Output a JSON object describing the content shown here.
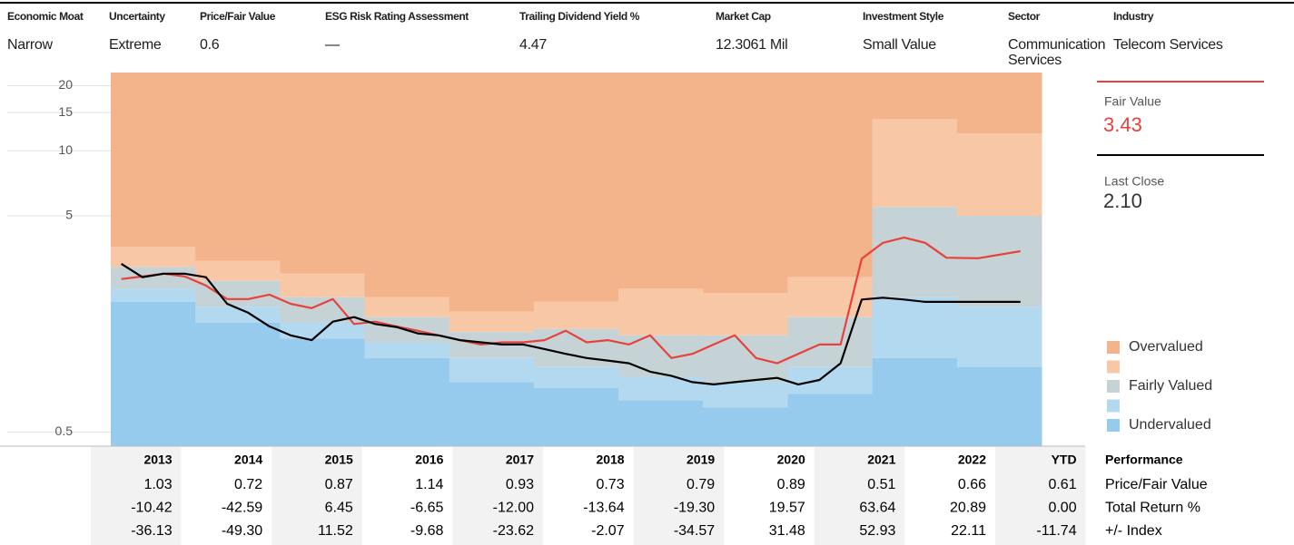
{
  "header": {
    "fields": [
      {
        "label": "Economic Moat",
        "value": "Narrow"
      },
      {
        "label": "Uncertainty",
        "value": "Extreme"
      },
      {
        "label": "Price/Fair Value",
        "value": "0.6"
      },
      {
        "label": "ESG Risk Rating Assessment",
        "value": "—"
      },
      {
        "label": "Trailing Dividend Yield %",
        "value": "4.47"
      },
      {
        "label": "Market Cap",
        "value": "12.3061 Mil"
      },
      {
        "label": "Investment Style",
        "value": "Small Value"
      },
      {
        "label": "Sector",
        "value": "Communication Services"
      },
      {
        "label": "Industry",
        "value": "Telecom Services"
      }
    ]
  },
  "chart_data": {
    "type": "valuation",
    "categories": [
      "2013",
      "2014",
      "2015",
      "2016",
      "2017",
      "2018",
      "2019",
      "2020",
      "2021",
      "2022",
      "YTD"
    ],
    "ylim": [
      0.43,
      23
    ],
    "yticks": [
      20,
      15,
      10,
      5,
      0.5
    ],
    "log_scale": true,
    "series": [
      {
        "name": "Overvalued",
        "color": "#f4b48b"
      },
      {
        "name": null,
        "color": "#f8c8a6",
        "values": [
          3.6,
          3.1,
          2.7,
          2.1,
          1.8,
          2.0,
          2.3,
          2.2,
          2.6,
          14,
          12
        ]
      },
      {
        "name": "Fairly Valued",
        "color": "#c6d3d6",
        "values": [
          2.9,
          2.5,
          2.1,
          1.7,
          1.45,
          1.5,
          1.4,
          1.4,
          1.7,
          5.5,
          5.0
        ]
      },
      {
        "name": null,
        "color": "#b3d9f1",
        "values": [
          2.3,
          1.9,
          1.6,
          1.3,
          1.1,
          1.0,
          0.9,
          0.85,
          1.0,
          2.1,
          1.9
        ]
      },
      {
        "name": "Undervalued",
        "color": "#97cbed",
        "values": [
          2.0,
          1.6,
          1.35,
          1.1,
          0.85,
          0.8,
          0.7,
          0.65,
          0.75,
          1.1,
          1.0
        ]
      }
    ],
    "fair_value": {
      "label": "Fair Value",
      "value": 3.43,
      "color": "#e8413c",
      "values": [
        [
          2.55,
          2.62,
          2.7,
          2.62
        ],
        [
          2.38,
          2.06,
          2.06,
          2.16
        ],
        [
          1.96,
          1.87,
          2.06,
          1.58
        ],
        [
          1.62,
          1.54,
          1.47,
          1.4
        ],
        [
          1.33,
          1.27,
          1.3,
          1.3
        ],
        [
          1.33,
          1.47,
          1.3,
          1.33
        ],
        [
          1.27,
          1.4,
          1.1,
          1.15
        ],
        [
          1.27,
          1.4,
          1.1,
          1.04
        ],
        [
          1.15,
          1.27,
          1.27,
          3.17
        ],
        [
          3.75,
          3.97,
          3.75,
          3.2
        ],
        [
          3.18,
          3.43
        ]
      ]
    },
    "last_close": {
      "label": "Last Close",
      "value": 2.1,
      "value_label": "2.10",
      "color": "#000000",
      "values": [
        [
          3.0,
          2.6,
          2.7,
          2.7
        ],
        [
          2.6,
          1.96,
          1.78,
          1.54
        ],
        [
          1.4,
          1.33,
          1.62,
          1.7
        ],
        [
          1.58,
          1.53,
          1.43,
          1.4
        ],
        [
          1.33,
          1.3,
          1.27,
          1.27
        ],
        [
          1.21,
          1.15,
          1.1,
          1.07
        ],
        [
          1.04,
          0.95,
          0.91,
          0.85
        ],
        [
          0.83,
          0.85,
          0.87,
          0.89
        ],
        [
          0.83,
          0.87,
          1.04,
          2.05
        ],
        [
          2.09,
          2.05,
          2.0,
          2.0
        ],
        [
          2.0,
          2.0
        ]
      ]
    }
  },
  "table": {
    "title": "Performance",
    "rows": [
      {
        "label": "Price/Fair Value",
        "values": [
          "1.03",
          "0.72",
          "0.87",
          "1.14",
          "0.93",
          "0.73",
          "0.79",
          "0.89",
          "0.51",
          "0.66",
          "0.61"
        ]
      },
      {
        "label": "Total Return %",
        "values": [
          "-10.42",
          "-42.59",
          "6.45",
          "-6.65",
          "-12.00",
          "-13.64",
          "-19.30",
          "19.57",
          "63.64",
          "20.89",
          "0.00"
        ]
      },
      {
        "label": "+/- Index",
        "values": [
          "-36.13",
          "-49.30",
          "11.52",
          "-9.68",
          "-23.62",
          "-2.07",
          "-34.57",
          "31.48",
          "52.93",
          "22.11",
          "-11.74"
        ]
      }
    ]
  }
}
